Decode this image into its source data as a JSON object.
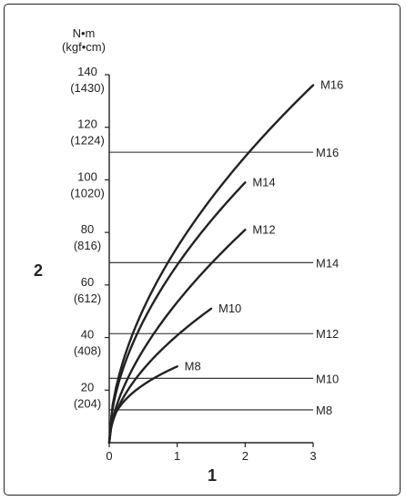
{
  "chart_data": {
    "type": "line",
    "y_unit_label": [
      "N•m",
      "(kgf•cm)"
    ],
    "y_axis_id": "2",
    "x_axis_id": "1",
    "xlim": [
      0,
      3
    ],
    "ylim": [
      0,
      140
    ],
    "x_ticks": [
      0,
      1,
      2,
      3
    ],
    "y_ticks": [
      {
        "value": 20,
        "label": "20",
        "sub": "(204)"
      },
      {
        "value": 40,
        "label": "40",
        "sub": "(408)"
      },
      {
        "value": 60,
        "label": "60",
        "sub": "(612)"
      },
      {
        "value": 80,
        "label": "80",
        "sub": "(816)"
      },
      {
        "value": 100,
        "label": "100",
        "sub": "(1020)"
      },
      {
        "value": 120,
        "label": "120",
        "sub": "(1224)"
      },
      {
        "value": 140,
        "label": "140",
        "sub": "(1430)"
      }
    ],
    "series": [
      {
        "name": "M8",
        "end_x": 1.0,
        "end_y": 29,
        "exp": 0.4
      },
      {
        "name": "M10",
        "end_x": 1.5,
        "end_y": 51,
        "exp": 0.55
      },
      {
        "name": "M12",
        "end_x": 2.0,
        "end_y": 81,
        "exp": 0.6
      },
      {
        "name": "M14",
        "end_x": 2.0,
        "end_y": 99,
        "exp": 0.55
      },
      {
        "name": "M16",
        "end_x": 3.0,
        "end_y": 136,
        "exp": 0.55
      }
    ],
    "reference_lines": [
      {
        "name": "M16",
        "value": 110.5
      },
      {
        "name": "M14",
        "value": 68.5
      },
      {
        "name": "M12",
        "value": 41.5
      },
      {
        "name": "M10",
        "value": 24.5
      },
      {
        "name": "M8",
        "value": 12.5
      }
    ],
    "colors": {
      "line": "#222222"
    }
  }
}
